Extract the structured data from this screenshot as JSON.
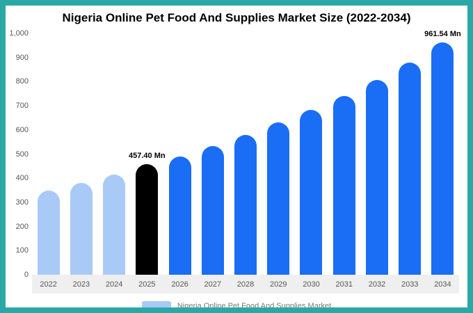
{
  "frame": {
    "border_color": "#2ca8a4",
    "background_color": "#ffffff",
    "xaxis_strip_color": "#efefef"
  },
  "title": "Nigeria Online Pet Food And Supplies Market Size (2022-2034)",
  "legend": {
    "label": "Nigeria Online Pet Food And Supplies Market",
    "swatch_color": "#a9c9f7"
  },
  "chart_data": {
    "type": "bar",
    "title": "Nigeria Online Pet Food And Supplies Market Size (2022-2034)",
    "xlabel": "",
    "ylabel": "",
    "ylim": [
      0,
      1000
    ],
    "grid": false,
    "legend_position": "bottom",
    "categories": [
      "2022",
      "2023",
      "2024",
      "2025",
      "2026",
      "2027",
      "2028",
      "2029",
      "2030",
      "2031",
      "2032",
      "2033",
      "2034"
    ],
    "values": [
      348,
      380,
      414,
      457.4,
      490,
      532,
      578,
      630,
      684,
      742,
      806,
      878,
      961.54
    ],
    "bar_colors": [
      "#a9c9f7",
      "#a9c9f7",
      "#a9c9f7",
      "#000000",
      "#1a6df5",
      "#1a6df5",
      "#1a6df5",
      "#1a6df5",
      "#1a6df5",
      "#1a6df5",
      "#1a6df5",
      "#1a6df5",
      "#1a6df5"
    ],
    "annotations": [
      {
        "category": "2025",
        "text": "457.40 Mn"
      },
      {
        "category": "2034",
        "text": "961.54 Mn"
      }
    ],
    "yticks": [
      "0",
      "100",
      "200",
      "300",
      "400",
      "500",
      "600",
      "700",
      "800",
      "900",
      "1,000"
    ]
  }
}
